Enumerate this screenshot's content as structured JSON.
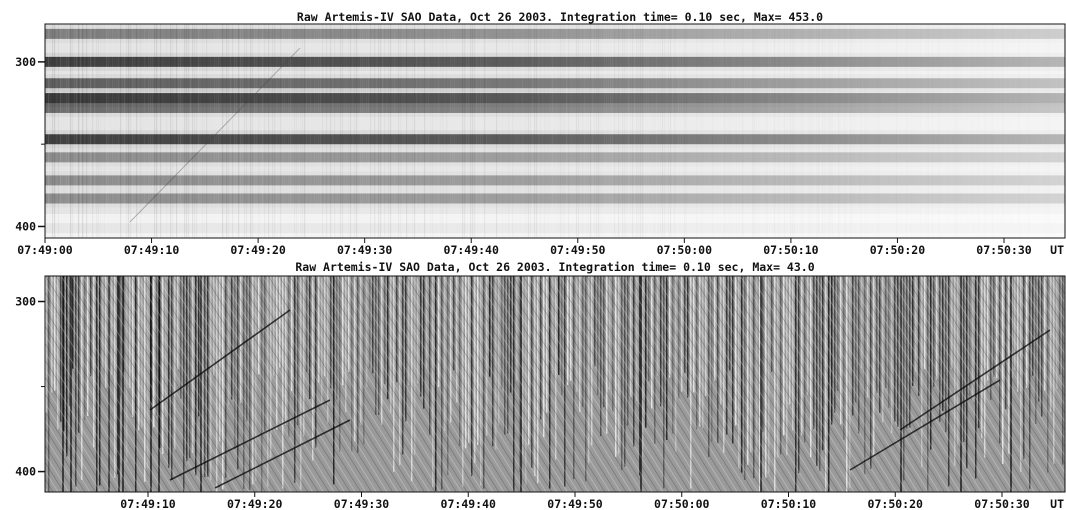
{
  "chart_data": [
    {
      "type": "heatmap",
      "title": "Raw  Artemis-IV  SAO Data, Oct 26 2003. Integration time= 0.10 sec, Max= 453.0",
      "x_tick_labels": [
        "07:49:00",
        "07:49:10",
        "07:49:20",
        "07:49:30",
        "07:49:40",
        "07:49:50",
        "07:50:00",
        "07:50:10",
        "07:50:20",
        "07:50:30",
        "UT"
      ],
      "x_ticks_seconds": [
        0,
        10,
        20,
        30,
        40,
        50,
        60,
        70,
        80,
        90
      ],
      "y_tick_labels": [
        "300",
        "400"
      ],
      "y_ticks": [
        300,
        400
      ],
      "y_range": [
        277,
        407
      ],
      "max": 453.0,
      "colormap": "grayscale-inverted",
      "dark_bands": [
        {
          "freq": 283,
          "strength": 0.45
        },
        {
          "freq": 300,
          "strength": 0.95
        },
        {
          "freq": 313,
          "strength": 0.7
        },
        {
          "freq": 322,
          "strength": 1.0
        },
        {
          "freq": 328,
          "strength": 0.6
        },
        {
          "freq": 347,
          "strength": 0.95
        },
        {
          "freq": 358,
          "strength": 0.35
        },
        {
          "freq": 372,
          "strength": 0.35
        },
        {
          "freq": 383,
          "strength": 0.35
        },
        {
          "freq": 401,
          "strength": 0.3
        }
      ]
    },
    {
      "type": "heatmap",
      "title": "Raw  Artemis-IV  SAO Data, Oct 26 2003. Integration time= 0.10 sec, Max=  43.0",
      "x_tick_labels": [
        "07:49:10",
        "07:49:20",
        "07:49:30",
        "07:49:40",
        "07:49:50",
        "07:50:00",
        "07:50:10",
        "07:50:20",
        "07:50:30",
        "UT"
      ],
      "x_ticks_seconds": [
        10,
        20,
        30,
        40,
        50,
        60,
        70,
        80,
        90
      ],
      "y_tick_labels": [
        "300",
        "400"
      ],
      "y_ticks": [
        300,
        400
      ],
      "y_range": [
        285,
        412
      ],
      "max": 43.0,
      "colormap": "grayscale-high-pass"
    }
  ]
}
